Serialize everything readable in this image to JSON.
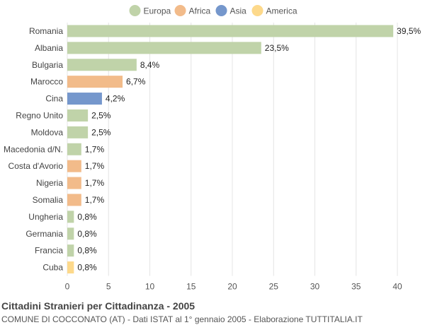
{
  "chart_data": {
    "type": "bar",
    "orientation": "horizontal",
    "title": "Cittadini Stranieri per Cittadinanza - 2005",
    "subtitle": "COMUNE DI COCCONATO (AT) - Dati ISTAT al 1° gennaio 2005 - Elaborazione TUTTITALIA.IT",
    "legend": {
      "placement": "top",
      "entries": [
        {
          "name": "Europa",
          "color": "#c0d3a9"
        },
        {
          "name": "Africa",
          "color": "#f2bb8a"
        },
        {
          "name": "Asia",
          "color": "#7597cc"
        },
        {
          "name": "America",
          "color": "#fdd98b"
        }
      ]
    },
    "categories": [
      "Romania",
      "Albania",
      "Bulgaria",
      "Marocco",
      "Cina",
      "Regno Unito",
      "Moldova",
      "Macedonia d/N.",
      "Costa d'Avorio",
      "Nigeria",
      "Somalia",
      "Ungheria",
      "Germania",
      "Francia",
      "Cuba"
    ],
    "values": [
      39.5,
      23.5,
      8.4,
      6.7,
      4.2,
      2.5,
      2.5,
      1.7,
      1.7,
      1.7,
      1.7,
      0.8,
      0.8,
      0.8,
      0.8
    ],
    "value_labels": [
      "39,5%",
      "23,5%",
      "8,4%",
      "6,7%",
      "4,2%",
      "2,5%",
      "2,5%",
      "1,7%",
      "1,7%",
      "1,7%",
      "1,7%",
      "0,8%",
      "0,8%",
      "0,8%",
      "0,8%"
    ],
    "groups": [
      "Europa",
      "Europa",
      "Europa",
      "Africa",
      "Asia",
      "Europa",
      "Europa",
      "Europa",
      "Africa",
      "Africa",
      "Africa",
      "Europa",
      "Europa",
      "Europa",
      "America"
    ],
    "xlim": [
      0,
      40
    ],
    "xticks": [
      0,
      5,
      10,
      15,
      20,
      25,
      30,
      35,
      40
    ],
    "grid": true,
    "xlabel": "",
    "ylabel": ""
  }
}
